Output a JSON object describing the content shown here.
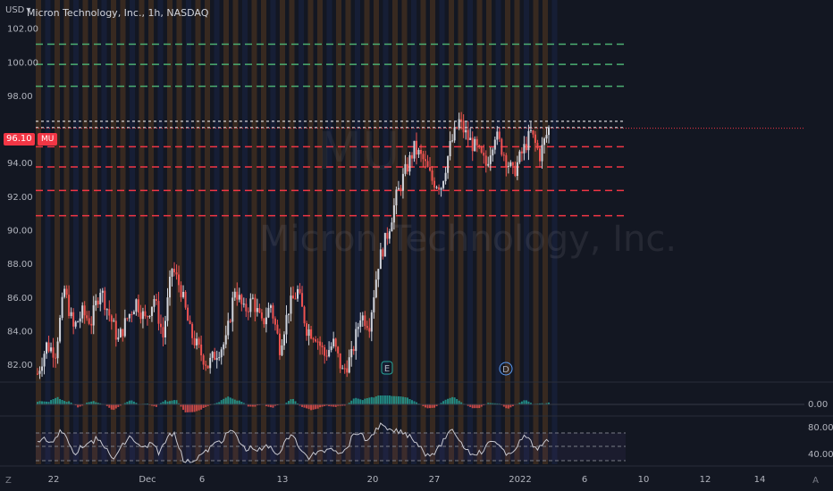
{
  "header": {
    "currency": "USD",
    "title": "Micron Technology, Inc., 1h, NASDAQ"
  },
  "watermark": {
    "symbol": "MU",
    "company": "Micron Technology, Inc."
  },
  "price_axis": {
    "labels": [
      "102.00",
      "100.00",
      "98.00",
      "94.00",
      "92.00",
      "90.00",
      "88.00",
      "86.00",
      "84.00",
      "82.00"
    ],
    "values": [
      102,
      100,
      98,
      94,
      92,
      90,
      88,
      86,
      84,
      82
    ],
    "current_price": "96.10",
    "symbol": "MU"
  },
  "time_axis": {
    "labels": [
      "22",
      "Dec",
      "6",
      "13",
      "20",
      "27",
      "2022",
      "10",
      "14"
    ]
  },
  "indicator_axis": {
    "macd_label": "0.00",
    "rsi_upper": "80.00",
    "rsi_lower": "40.00"
  },
  "markers": {
    "earnings": "E",
    "dividend": "D"
  },
  "footer": {
    "timezone_btn": "Z",
    "auto_btn": "A"
  },
  "colors": {
    "background": "#131722",
    "up": "#d1d4dc",
    "down": "#ef5350",
    "support_line": "#f23645",
    "resistance_line": "#4caf72",
    "band_orange": "#7a4a1c",
    "band_blue": "#1e2a5a"
  },
  "chart_data": {
    "type": "candlestick",
    "symbol": "MU",
    "interval": "1h",
    "exchange": "NASDAQ",
    "current_price": 96.1,
    "resistance_levels": [
      101.1,
      99.9,
      98.6
    ],
    "support_levels": [
      95.0,
      93.8,
      92.4,
      90.9
    ],
    "price_path": [
      [
        0,
        81.5
      ],
      [
        4,
        83.2
      ],
      [
        8,
        82.8
      ],
      [
        12,
        86.5
      ],
      [
        16,
        84.2
      ],
      [
        20,
        85.1
      ],
      [
        24,
        84.6
      ],
      [
        28,
        86.6
      ],
      [
        32,
        85.0
      ],
      [
        36,
        83.5
      ],
      [
        40,
        84.8
      ],
      [
        44,
        85.8
      ],
      [
        48,
        84.7
      ],
      [
        52,
        86.0
      ],
      [
        56,
        83.7
      ],
      [
        60,
        87.8
      ],
      [
        64,
        86.5
      ],
      [
        68,
        84.0
      ],
      [
        72,
        82.9
      ],
      [
        76,
        82.0
      ],
      [
        80,
        82.8
      ],
      [
        84,
        83.4
      ],
      [
        88,
        86.6
      ],
      [
        92,
        85.2
      ],
      [
        96,
        85.9
      ],
      [
        100,
        84.4
      ],
      [
        104,
        85.6
      ],
      [
        108,
        83.1
      ],
      [
        112,
        85.4
      ],
      [
        116,
        86.4
      ],
      [
        120,
        84.2
      ],
      [
        124,
        83.8
      ],
      [
        128,
        82.6
      ],
      [
        132,
        83.3
      ],
      [
        136,
        81.6
      ],
      [
        140,
        82.5
      ],
      [
        144,
        85.0
      ],
      [
        148,
        84.5
      ],
      [
        152,
        88.1
      ],
      [
        156,
        89.8
      ],
      [
        160,
        92.0
      ],
      [
        164,
        93.5
      ],
      [
        168,
        94.9
      ],
      [
        172,
        94.2
      ],
      [
        176,
        93.0
      ],
      [
        180,
        92.7
      ],
      [
        184,
        95.0
      ],
      [
        188,
        96.5
      ],
      [
        192,
        95.5
      ],
      [
        196,
        94.8
      ],
      [
        200,
        93.9
      ],
      [
        204,
        95.8
      ],
      [
        208,
        94.6
      ],
      [
        212,
        93.4
      ],
      [
        216,
        94.6
      ],
      [
        220,
        95.8
      ],
      [
        224,
        94.5
      ],
      [
        228,
        96.1
      ]
    ],
    "macd_range": [
      -1,
      1
    ],
    "rsi_range": [
      30,
      85
    ]
  }
}
